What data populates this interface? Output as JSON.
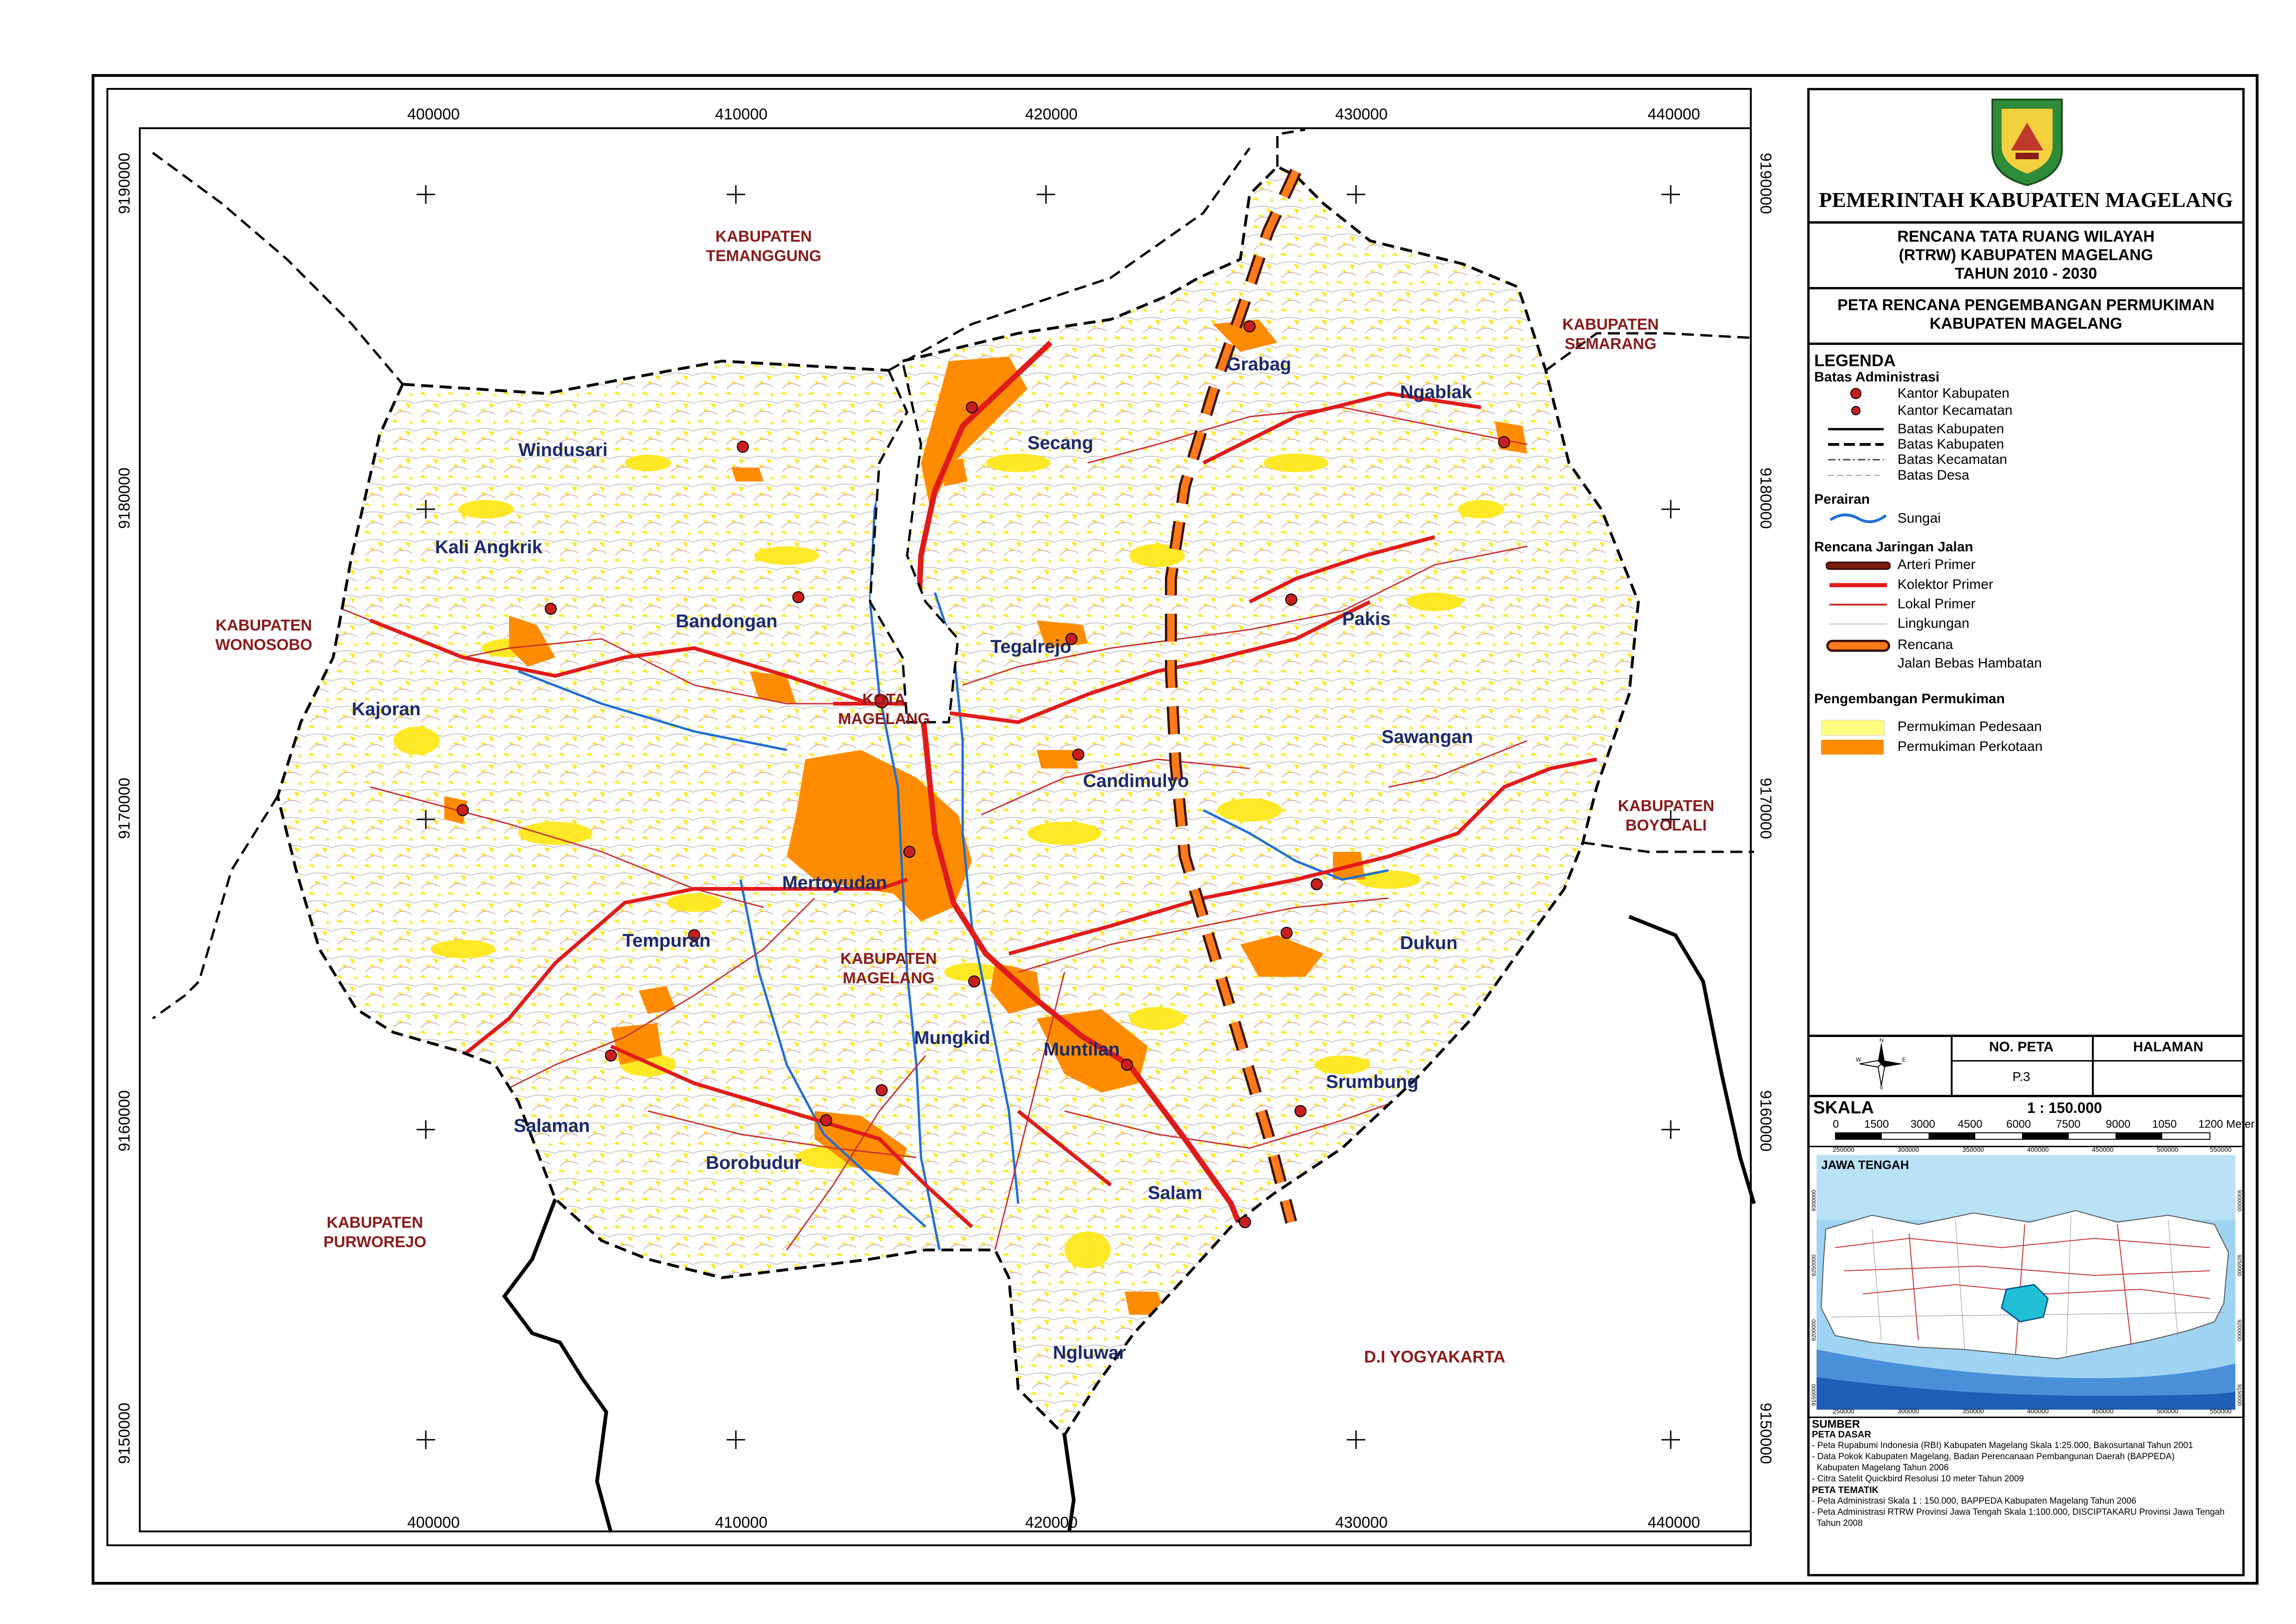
{
  "header": {
    "government": "PEMERINTAH KABUPATEN MAGELANG",
    "plan_line1": "RENCANA TATA RUANG WILAYAH",
    "plan_line2": "(RTRW) KABUPATEN MAGELANG",
    "plan_line3": "TAHUN 2010 - 2030",
    "map_title1": "PETA RENCANA PENGEMBANGAN PERMUKIMAN",
    "map_title2": "KABUPATEN MAGELANG",
    "logo_text": "KABUPATEN MAGELANG"
  },
  "coordinates": {
    "x_ticks": [
      "400000",
      "410000",
      "420000",
      "430000",
      "440000"
    ],
    "y_ticks": [
      "9190000",
      "9180000",
      "9170000",
      "9160000",
      "9150000"
    ]
  },
  "regions": {
    "temanggung": [
      "KABUPATEN",
      "TEMANGGUNG"
    ],
    "semarang": [
      "KABUPATEN",
      "SEMARANG"
    ],
    "wonosobo": [
      "KABUPATEN",
      "WONOSOBO"
    ],
    "boyolali": [
      "KABUPATEN",
      "BOYOLALI"
    ],
    "purworejo": [
      "KABUPATEN",
      "PURWOREJO"
    ],
    "yogyakarta": "D.I YOGYAKARTA",
    "kota": [
      "KOTA",
      "MAGELANG"
    ],
    "kab": [
      "KABUPATEN",
      "MAGELANG"
    ]
  },
  "districts": [
    "Windusari",
    "Kali Angkrik",
    "Bandongan",
    "Kajoran",
    "Tempuran",
    "Mertoyudan",
    "Salaman",
    "Borobudur",
    "Mungkid",
    "Muntilan",
    "Salam",
    "Ngluwar",
    "Secang",
    "Tegalrejo",
    "Candimulyo",
    "Grabag",
    "Ngablak",
    "Pakis",
    "Sawangan",
    "Dukun",
    "Srumbung"
  ],
  "legend": {
    "title": "LEGENDA",
    "admin_head": "Batas Administrasi",
    "admin_items": [
      "Kantor Kabupaten",
      "Kantor  Kecamatan",
      "Batas Kabupaten",
      "Batas Kabupaten",
      "Batas Kecamatan",
      "Batas Desa"
    ],
    "water_head": "Perairan",
    "water_items": [
      "Sungai"
    ],
    "road_head": "Rencana Jaringan Jalan",
    "road_items": [
      "Arteri Primer",
      "Kolektor Primer",
      "Lokal Primer",
      "Lingkungan",
      "Rencana",
      "Jalan Bebas Hambatan"
    ],
    "settle_head": "Pengembangan Permukiman",
    "settle_items": [
      "Permukiman Pedesaan",
      "Permukiman Perkotaan"
    ]
  },
  "sheet": {
    "no_label": "NO. PETA",
    "no_value": "P.3",
    "page_label": "HALAMAN",
    "page_value": ""
  },
  "compass": [
    "N",
    "S",
    "E",
    "W"
  ],
  "scale": {
    "label": "SKALA",
    "ratio": "1 : 150.000",
    "ticks": [
      "0",
      "1500",
      "3000",
      "4500",
      "6000",
      "7500",
      "9000",
      "1050",
      "1200",
      "Meter"
    ]
  },
  "inset": {
    "title": "JAWA TENGAH",
    "x_ticks": [
      "250000",
      "300000",
      "350000",
      "400000",
      "450000",
      "500000",
      "550000"
    ],
    "y_ticks_left": [
      "9150000",
      "9200000",
      "9250000",
      "9300000"
    ],
    "y_ticks_right": [
      "9150000",
      "9200000",
      "9250000",
      "9300000"
    ]
  },
  "sources": {
    "head": "SUMBER",
    "base_head": "PETA DASAR",
    "base_items": [
      "- Peta Rupabumi Indonesia (RBI) Kabupaten Magelang Skala 1:25.000, Bakosurtanal Tahun 2001",
      "- Data Pokok Kabupaten Magelang, Badan Perencanaan Pembangunan Daerah (BAPPEDA)",
      "  Kabupaten Magelang Tahun 2006",
      "- Citra Satelit Quickbird Resolusi 10 meter Tahun 2009"
    ],
    "theme_head": "PETA TEMATIK",
    "theme_items": [
      "- Peta Administrasi Skala 1 : 150.000, BAPPEDA Kabupaten Magelang Tahun 2006",
      "- Peta Administrasi RTRW Provinsi Jawa Tengah Skala 1:100.000, DISCIPTAKARU Provinsi Jawa Tengah",
      "  Tahun 2008"
    ]
  },
  "colors": {
    "rural": "#ffff33",
    "urban": "#ff8c00",
    "arterial": "#7a1e0e",
    "collector": "#e01b1b",
    "local": "#c83232",
    "river": "#1f6fd6",
    "region_label": "#8b1a1a",
    "district_label": "#1b2a6b"
  }
}
